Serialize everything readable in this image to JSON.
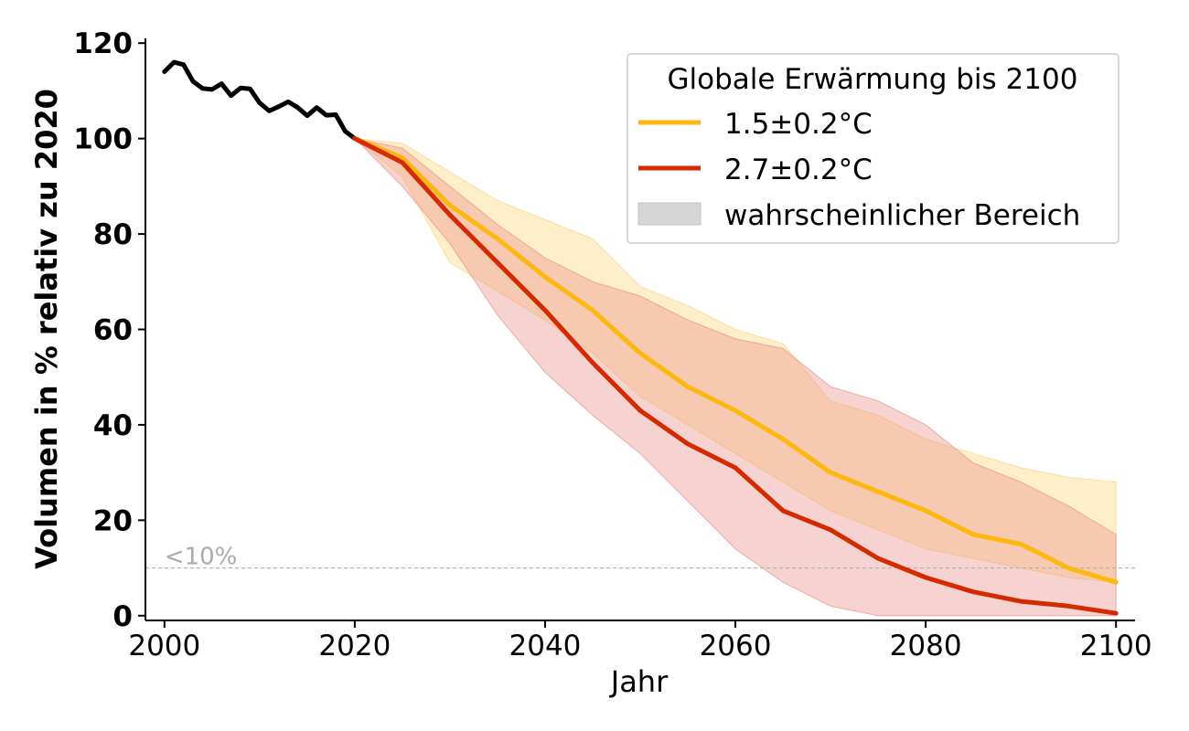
{
  "chart_data": {
    "type": "line",
    "xlabel": "Jahr",
    "ylabel": "Volumen in % relativ zu 2020",
    "xlim": [
      1998,
      2102
    ],
    "ylim": [
      -1,
      121
    ],
    "x_ticks": [
      2000,
      2020,
      2040,
      2060,
      2080,
      2100
    ],
    "y_ticks": [
      0,
      20,
      40,
      60,
      80,
      100,
      120
    ],
    "grid": false,
    "legend": {
      "title": "Globale Erwärmung bis 2100",
      "placement": "top-right",
      "entries": [
        "1.5±0.2°C",
        "2.7±0.2°C",
        "wahrscheinlicher Bereich"
      ]
    },
    "threshold": {
      "y": 10,
      "label": "<10%"
    },
    "historical": {
      "color": "#000000",
      "x": [
        2000,
        2001,
        2002,
        2003,
        2004,
        2005,
        2006,
        2007,
        2008,
        2009,
        2010,
        2011,
        2012,
        2013,
        2014,
        2015,
        2016,
        2017,
        2018,
        2019,
        2020
      ],
      "y": [
        114,
        116,
        115.5,
        112,
        110.5,
        110.3,
        111.5,
        109,
        110.6,
        110.4,
        107.5,
        105.8,
        106.7,
        107.7,
        106.5,
        104.8,
        106.5,
        104.9,
        105,
        101.5,
        100
      ]
    },
    "series": [
      {
        "name": "1.5±0.2°C",
        "color": "#FDB70F",
        "band_color": "#FFD47A",
        "x": [
          2020,
          2025,
          2030,
          2035,
          2040,
          2045,
          2050,
          2055,
          2060,
          2065,
          2070,
          2075,
          2080,
          2085,
          2090,
          2095,
          2100
        ],
        "y": [
          100,
          96,
          86,
          79,
          71,
          64,
          55,
          48,
          43,
          37,
          30,
          26,
          22,
          17,
          15,
          10,
          7
        ],
        "lower": [
          100,
          92,
          74,
          68,
          62,
          55,
          46,
          40,
          34,
          28,
          22,
          18,
          14,
          12,
          10,
          8,
          7
        ],
        "upper": [
          100,
          99,
          93,
          87,
          83,
          79,
          69,
          65,
          60,
          57,
          45,
          42,
          37,
          34,
          31,
          29,
          28
        ]
      },
      {
        "name": "2.7±0.2°C",
        "color": "#D42A00",
        "band_color": "#E8928A",
        "x": [
          2020,
          2025,
          2030,
          2035,
          2040,
          2045,
          2050,
          2055,
          2060,
          2065,
          2070,
          2075,
          2080,
          2085,
          2090,
          2095,
          2100
        ],
        "y": [
          100,
          95,
          84,
          74,
          64,
          53,
          43,
          36,
          31,
          22,
          18,
          12,
          8,
          5,
          3,
          2,
          0.5
        ],
        "lower": [
          100,
          90,
          78,
          63,
          51,
          42,
          34,
          24,
          14,
          7,
          2,
          0,
          0,
          0,
          0,
          0,
          0
        ],
        "upper": [
          100,
          98,
          90,
          82,
          75,
          70,
          67,
          62,
          58,
          56,
          48,
          45,
          40,
          32,
          28,
          23,
          17
        ]
      }
    ]
  }
}
